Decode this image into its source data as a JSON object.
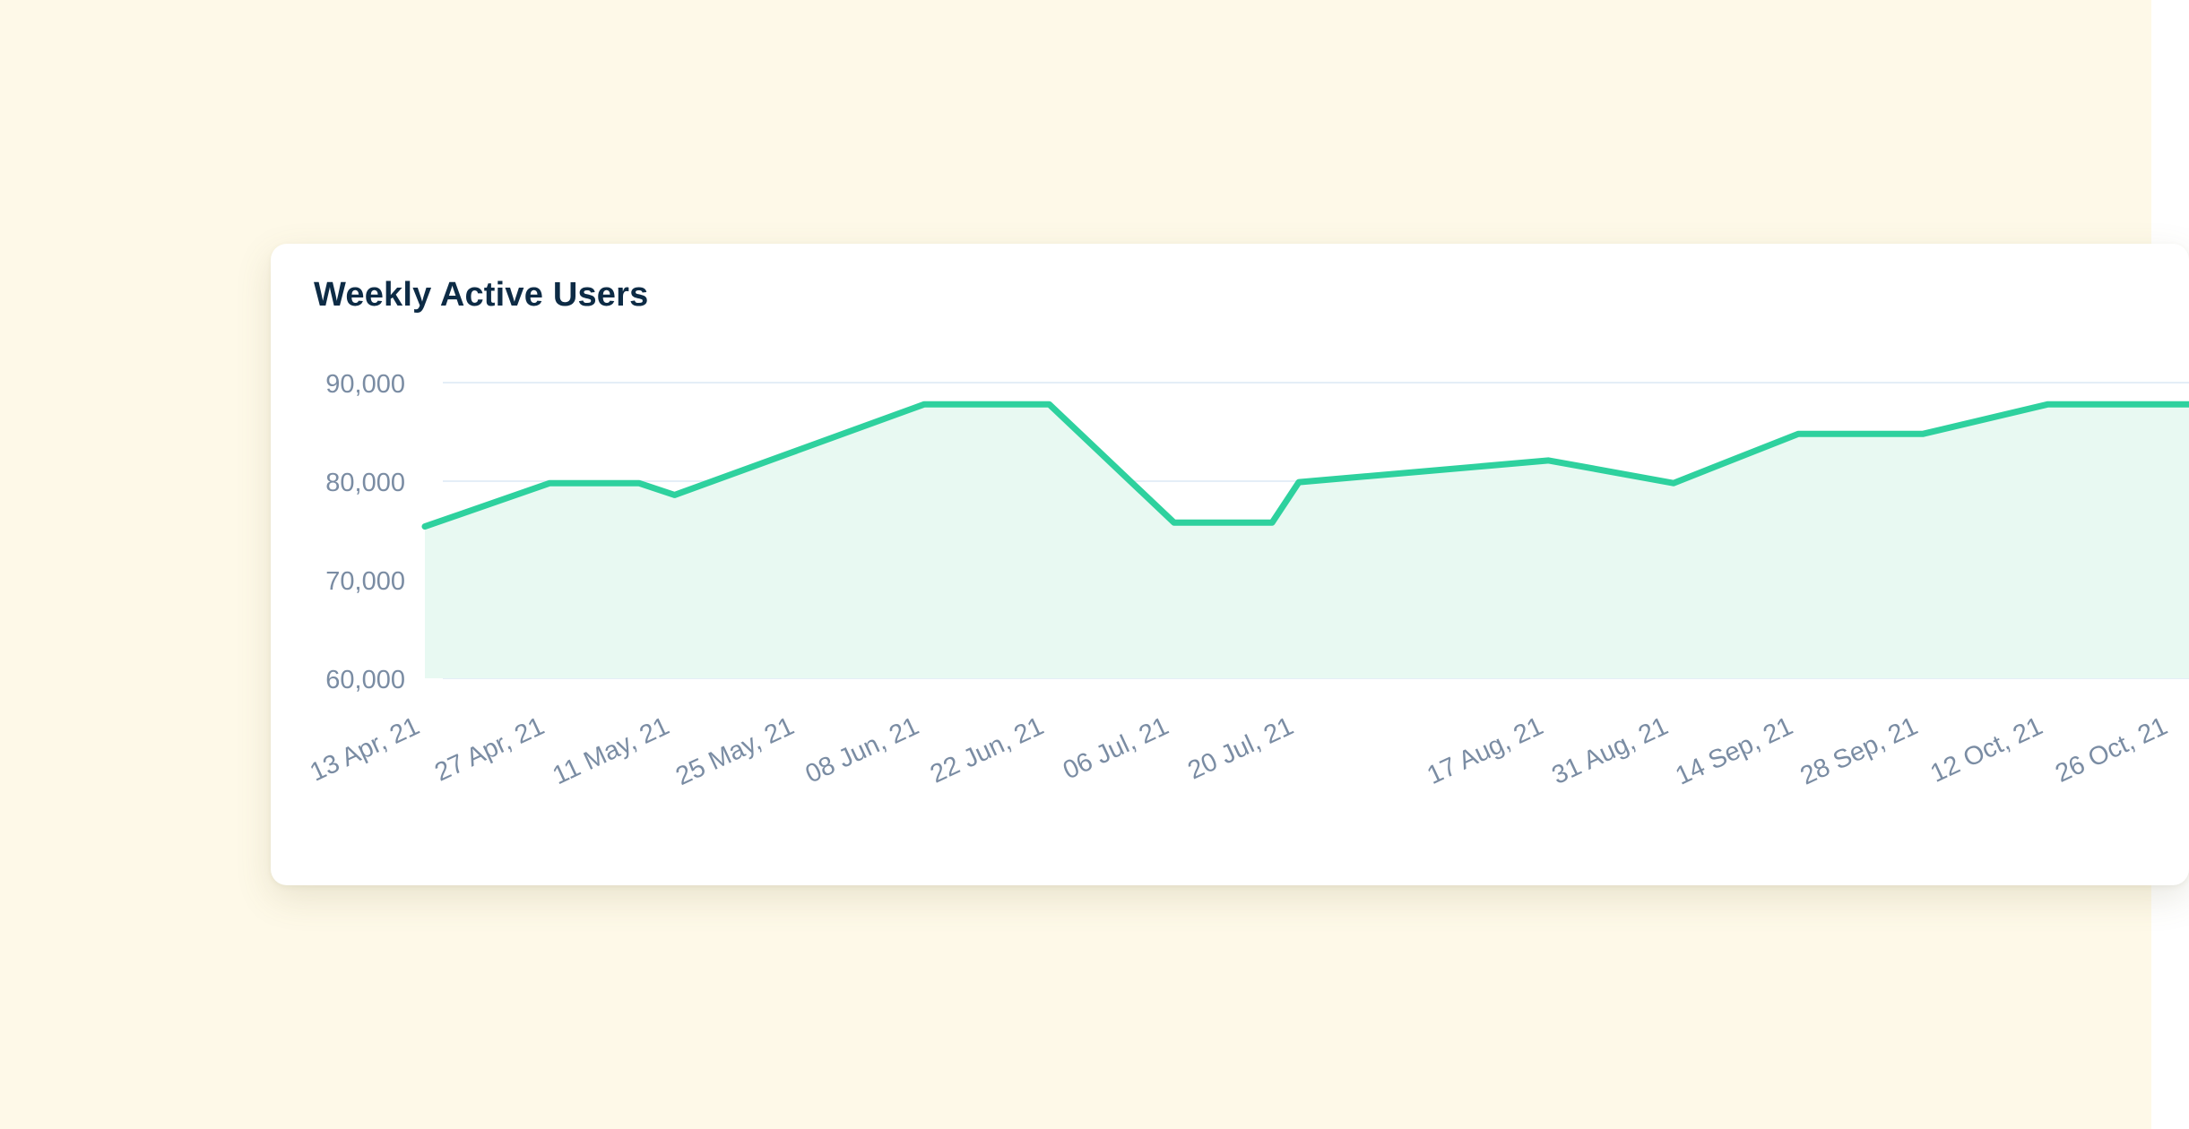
{
  "page": {
    "background_color": "#fef9e8"
  },
  "card": {
    "title": "Weekly Active Users",
    "title_color": "#0d2b45",
    "background_color": "#ffffff"
  },
  "chart_data": {
    "type": "area",
    "title": "Weekly Active Users",
    "xlabel": "",
    "ylabel": "",
    "ylim": [
      60000,
      90000
    ],
    "y_ticks": [
      "90,000",
      "80,000",
      "70,000",
      "60,000"
    ],
    "y_tick_values": [
      90000,
      80000,
      70000,
      60000
    ],
    "x_tick_labels": [
      "13 Apr, 21",
      "27 Apr, 21",
      "11 May, 21",
      "25 May, 21",
      "08 Jun, 21",
      "22 Jun, 21",
      "06 Jul, 21",
      "20 Jul, 21",
      "17 Aug, 21",
      "31 Aug, 21",
      "14 Sep, 21",
      "28 Sep, 21",
      "12 Oct, 21",
      "26 Oct, 21"
    ],
    "grid": true,
    "legend": "none",
    "line_color": "#2ed19e",
    "fill_color": "#e8f9f2",
    "gridline_color": "#e4eef7",
    "tick_label_color": "#7a8ca3",
    "series": [
      {
        "values": [
          {
            "x": "13 Apr, 21",
            "y": 75400
          },
          {
            "x": "27 Apr, 21",
            "y": 79800
          },
          {
            "x": "07 May, 21",
            "y": 79800
          },
          {
            "x": "11 May, 21",
            "y": 78600
          },
          {
            "x": "08 Jun, 21",
            "y": 87800
          },
          {
            "x": "22 Jun, 21",
            "y": 87800
          },
          {
            "x": "06 Jul, 21",
            "y": 75800
          },
          {
            "x": "17 Jul, 21",
            "y": 75800
          },
          {
            "x": "20 Jul, 21",
            "y": 79900
          },
          {
            "x": "17 Aug, 21",
            "y": 82100
          },
          {
            "x": "31 Aug, 21",
            "y": 79800
          },
          {
            "x": "14 Sep, 21",
            "y": 84800
          },
          {
            "x": "28 Sep, 21",
            "y": 84800
          },
          {
            "x": "12 Oct, 21",
            "y": 87800
          },
          {
            "x": "26 Oct, 21",
            "y": 87800
          }
        ]
      }
    ]
  }
}
